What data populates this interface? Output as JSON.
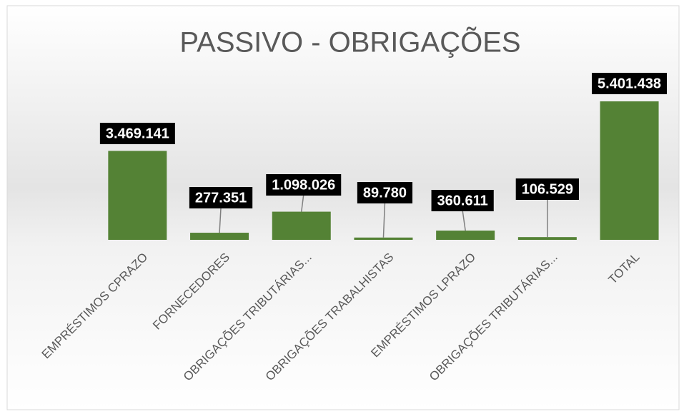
{
  "chart_data": {
    "type": "bar",
    "title": "PASSIVO - OBRIGAÇÕES",
    "categories": [
      "EMPRÉSTIMOS CPRAZO",
      "FORNECEDORES",
      "OBRIGAÇÕES TRIBUTÁRIAS...",
      "OBRIGAÇÕES TRABALHISTAS",
      "EMPRÉSTIMOS LPRAZO",
      "OBRIGAÇÕES TRIBUTÁRIAS...",
      "TOTAL"
    ],
    "values": [
      3469141,
      277351,
      1098026,
      89780,
      360611,
      106529,
      5401438
    ],
    "value_labels": [
      "3.469.141",
      "277.351",
      "1.098.026",
      "89.780",
      "360.611",
      "106.529",
      "5.401.438"
    ],
    "color": "#548235"
  }
}
